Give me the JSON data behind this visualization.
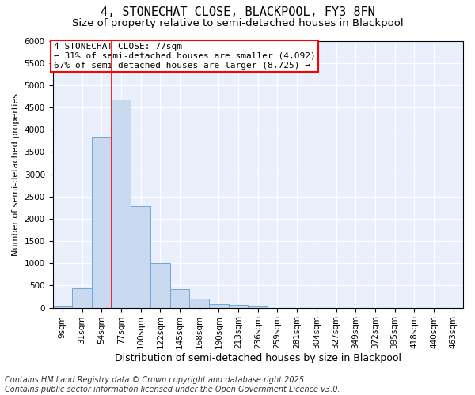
{
  "title": "4, STONECHAT CLOSE, BLACKPOOL, FY3 8FN",
  "subtitle": "Size of property relative to semi-detached houses in Blackpool",
  "xlabel": "Distribution of semi-detached houses by size in Blackpool",
  "ylabel": "Number of semi-detached properties",
  "categories": [
    "9sqm",
    "31sqm",
    "54sqm",
    "77sqm",
    "100sqm",
    "122sqm",
    "145sqm",
    "168sqm",
    "190sqm",
    "213sqm",
    "236sqm",
    "259sqm",
    "281sqm",
    "304sqm",
    "327sqm",
    "349sqm",
    "372sqm",
    "395sqm",
    "418sqm",
    "440sqm",
    "463sqm"
  ],
  "values": [
    50,
    430,
    3820,
    4670,
    2290,
    1000,
    410,
    200,
    90,
    70,
    50,
    0,
    0,
    0,
    0,
    0,
    0,
    0,
    0,
    0,
    0
  ],
  "bar_color": "#c9d9f0",
  "bar_edge_color": "#6fa8d6",
  "vline_x_index": 3,
  "vline_color": "red",
  "annotation_text": "4 STONECHAT CLOSE: 77sqm\n← 31% of semi-detached houses are smaller (4,092)\n67% of semi-detached houses are larger (8,725) →",
  "ylim": [
    0,
    6000
  ],
  "yticks": [
    0,
    500,
    1000,
    1500,
    2000,
    2500,
    3000,
    3500,
    4000,
    4500,
    5000,
    5500,
    6000
  ],
  "background_color": "#eaf0fb",
  "grid_color": "white",
  "footer": "Contains HM Land Registry data © Crown copyright and database right 2025.\nContains public sector information licensed under the Open Government Licence v3.0.",
  "title_fontsize": 11,
  "subtitle_fontsize": 9.5,
  "ylabel_fontsize": 8,
  "xlabel_fontsize": 9,
  "tick_fontsize": 7.5,
  "annotation_fontsize": 8,
  "footer_fontsize": 7
}
